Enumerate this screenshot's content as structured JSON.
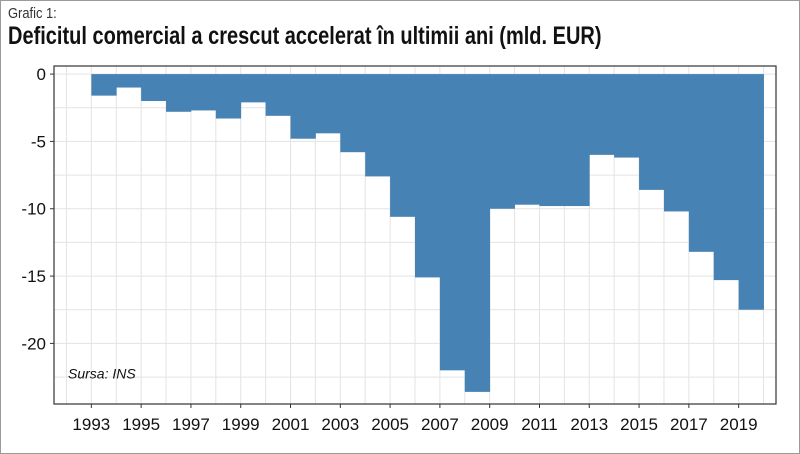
{
  "header": {
    "label": "Grafic 1:",
    "title": "Deficitul comercial a crescut accelerat în ultimii ani (mld. EUR)"
  },
  "source_note": "Sursa: INS",
  "colors": {
    "bar": "#4682b4",
    "grid": "#e3e3e3",
    "panel_border": "#333333"
  },
  "chart_data": {
    "type": "bar",
    "categories": [
      "1993",
      "1994",
      "1995",
      "1996",
      "1997",
      "1998",
      "1999",
      "2000",
      "2001",
      "2002",
      "2003",
      "2004",
      "2005",
      "2006",
      "2007",
      "2008",
      "2009",
      "2010",
      "2011",
      "2012",
      "2013",
      "2014",
      "2015",
      "2016",
      "2017",
      "2018",
      "2019"
    ],
    "values": [
      -1.6,
      -1.0,
      -2.0,
      -2.8,
      -2.7,
      -3.3,
      -2.1,
      -3.1,
      -4.8,
      -4.4,
      -5.8,
      -7.6,
      -10.6,
      -15.1,
      -22.0,
      -23.6,
      -10.0,
      -9.7,
      -9.8,
      -9.8,
      -6.0,
      -6.2,
      -8.6,
      -10.2,
      -13.2,
      -15.3,
      -17.5
    ],
    "xlabel": "",
    "ylabel": "",
    "ylim": [
      -24.5,
      0.6
    ],
    "yticks": [
      0,
      -5,
      -10,
      -15,
      -20
    ],
    "ytick_labels": [
      "0",
      "-5",
      "-10",
      "-15",
      "-20"
    ],
    "xtick_labels": [
      "1993",
      "1995",
      "1997",
      "1999",
      "2001",
      "2003",
      "2005",
      "2007",
      "2009",
      "2011",
      "2013",
      "2015",
      "2017",
      "2019"
    ],
    "grid": true,
    "legend": "none"
  }
}
